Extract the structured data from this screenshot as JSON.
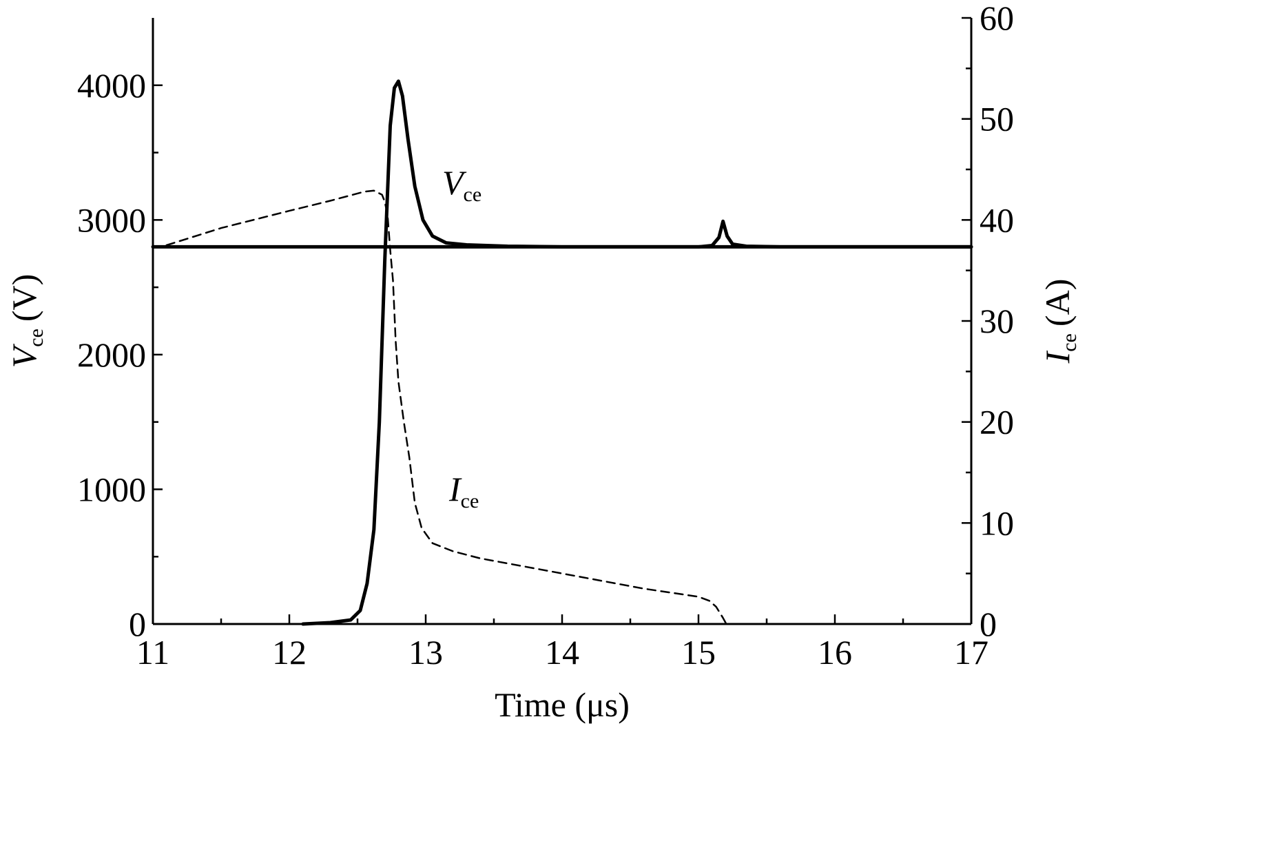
{
  "chart_data": {
    "type": "line",
    "xlabel": "Time (μs)",
    "ylabel": {
      "symbol": "V",
      "subscript": "ce",
      "unit": "(V)"
    },
    "y2label": {
      "symbol": "I",
      "subscript": "ce",
      "unit": "(A)"
    },
    "xlim": [
      11,
      17
    ],
    "ylim": [
      0,
      4500
    ],
    "y2lim": [
      0,
      60
    ],
    "xticks": [
      "11",
      "12",
      "13",
      "14",
      "15",
      "16",
      "17"
    ],
    "yticks": [
      "0",
      "1000",
      "2000",
      "3000",
      "4000"
    ],
    "y2ticks": [
      "0",
      "10",
      "20",
      "30",
      "40",
      "50",
      "60"
    ],
    "grid": false,
    "legend": "none",
    "series": [
      {
        "name": "V_ce",
        "label": {
          "symbol": "V",
          "subscript": "ce"
        },
        "axis": "left",
        "style": "solid",
        "color": "#000000",
        "x": [
          12.1,
          12.3,
          12.45,
          12.52,
          12.57,
          12.62,
          12.66,
          12.7,
          12.74,
          12.77,
          12.8,
          12.83,
          12.87,
          12.92,
          12.98,
          13.05,
          13.15,
          13.3,
          13.6,
          14.0,
          14.5,
          15.0,
          15.1,
          15.15,
          15.18,
          15.21,
          15.25,
          15.35,
          15.6,
          16.0,
          17.0
        ],
        "y": [
          0,
          10,
          30,
          100,
          300,
          700,
          1500,
          2700,
          3700,
          3980,
          4030,
          3920,
          3600,
          3250,
          3000,
          2880,
          2830,
          2815,
          2805,
          2800,
          2800,
          2800,
          2810,
          2870,
          2990,
          2880,
          2820,
          2805,
          2800,
          2800,
          2800
        ]
      },
      {
        "name": "I_ce",
        "label": {
          "symbol": "I",
          "subscript": "ce"
        },
        "axis": "right",
        "style": "dashed",
        "color": "#000000",
        "x": [
          11.1,
          11.5,
          12.0,
          12.3,
          12.55,
          12.62,
          12.68,
          12.7,
          12.72,
          12.74,
          12.76,
          12.78,
          12.8,
          12.84,
          12.88,
          12.92,
          12.97,
          13.05,
          13.2,
          13.4,
          13.8,
          14.2,
          14.6,
          15.0,
          15.08,
          15.13,
          15.18,
          15.2
        ],
        "y": [
          37.5,
          39.2,
          40.9,
          41.9,
          42.8,
          42.9,
          42.5,
          41.8,
          40.5,
          37.0,
          34.0,
          28.0,
          24.0,
          20.0,
          16.5,
          12.0,
          9.5,
          8.0,
          7.2,
          6.5,
          5.5,
          4.5,
          3.5,
          2.7,
          2.3,
          1.7,
          0.6,
          0.1
        ]
      },
      {
        "name": "baseline",
        "axis": "left",
        "style": "solid",
        "color": "#000000",
        "x": [
          11,
          17
        ],
        "y": [
          2800,
          2800
        ]
      }
    ]
  }
}
